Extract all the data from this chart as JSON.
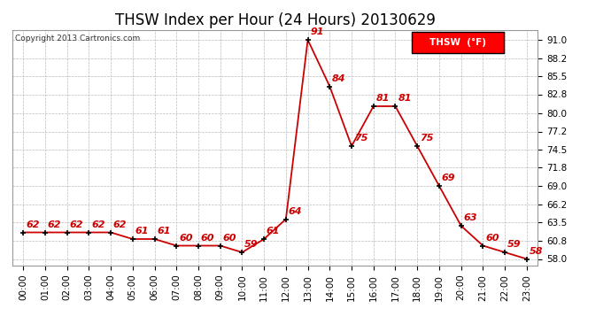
{
  "title": "THSW Index per Hour (24 Hours) 20130629",
  "copyright": "Copyright 2013 Cartronics.com",
  "legend_label": "THSW  (°F)",
  "hours": [
    0,
    1,
    2,
    3,
    4,
    5,
    6,
    7,
    8,
    9,
    10,
    11,
    12,
    13,
    14,
    15,
    16,
    17,
    18,
    19,
    20,
    21,
    22,
    23
  ],
  "values": [
    62,
    62,
    62,
    62,
    62,
    61,
    61,
    60,
    60,
    60,
    59,
    61,
    64,
    91,
    84,
    75,
    81,
    81,
    75,
    69,
    63,
    60,
    59,
    58
  ],
  "line_color": "#cc0000",
  "marker_color": "#000000",
  "bg_color": "#ffffff",
  "grid_color": "#bbbbbb",
  "yticks": [
    58.0,
    60.8,
    63.5,
    66.2,
    69.0,
    71.8,
    74.5,
    77.2,
    80.0,
    82.8,
    85.5,
    88.2,
    91.0
  ],
  "ylim_min": 57.0,
  "ylim_max": 92.5,
  "title_fontsize": 12,
  "label_fontsize": 7.5,
  "annot_fontsize": 8
}
